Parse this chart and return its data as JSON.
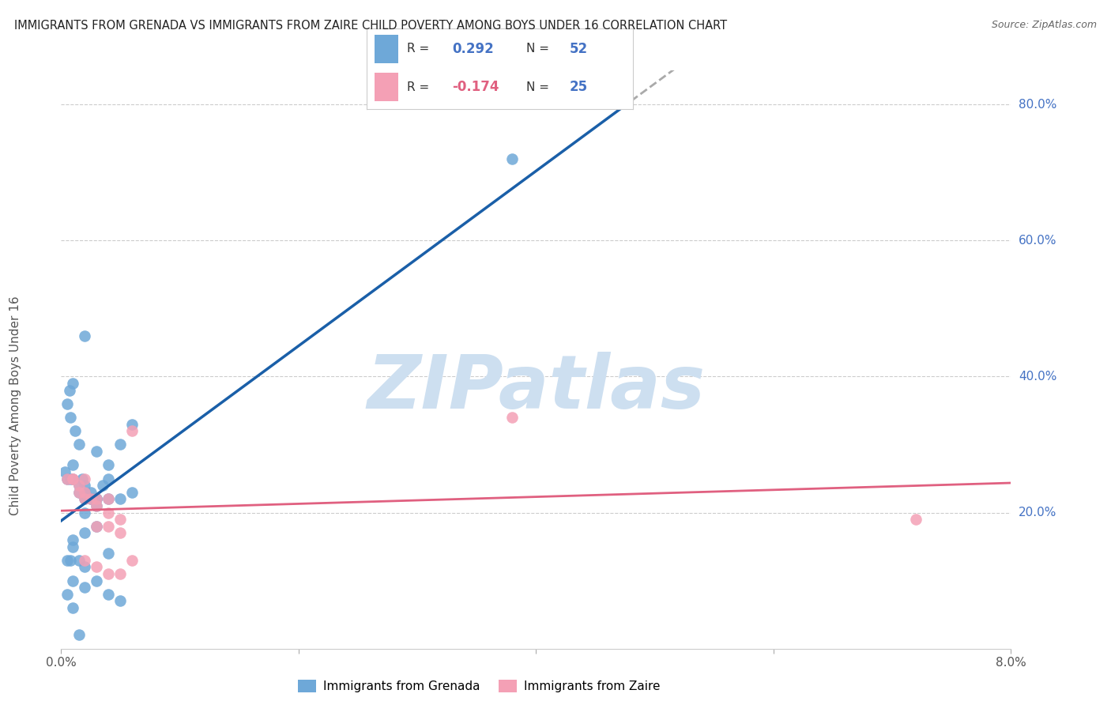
{
  "title": "IMMIGRANTS FROM GRENADA VS IMMIGRANTS FROM ZAIRE CHILD POVERTY AMONG BOYS UNDER 16 CORRELATION CHART",
  "source": "Source: ZipAtlas.com",
  "ylabel": "Child Poverty Among Boys Under 16",
  "xlabel_grenada": "Immigrants from Grenada",
  "xlabel_zaire": "Immigrants from Zaire",
  "x_min": 0.0,
  "x_max": 0.08,
  "y_min": 0.0,
  "y_max": 0.85,
  "right_yticks": [
    0.2,
    0.4,
    0.6,
    0.8
  ],
  "right_ytick_labels": [
    "20.0%",
    "40.0%",
    "60.0%",
    "80.0%"
  ],
  "grenada_R": 0.292,
  "grenada_N": 52,
  "zaire_R": -0.174,
  "zaire_N": 25,
  "grenada_color": "#6ea8d8",
  "zaire_color": "#f4a0b5",
  "grenada_line_color": "#1a5fa8",
  "zaire_line_color": "#e06080",
  "dashed_line_color": "#aaaaaa",
  "watermark": "ZIPatlas",
  "watermark_color": "#cddff0",
  "background_color": "#ffffff",
  "title_fontsize": 11,
  "source_fontsize": 9,
  "grenada_x": [
    0.0003,
    0.0007,
    0.0005,
    0.001,
    0.0008,
    0.0012,
    0.0015,
    0.001,
    0.0018,
    0.002,
    0.0015,
    0.0025,
    0.002,
    0.003,
    0.0035,
    0.004,
    0.005,
    0.006,
    0.001,
    0.0005,
    0.0008,
    0.0015,
    0.002,
    0.0025,
    0.001,
    0.0005,
    0.0008,
    0.0015,
    0.002,
    0.0025,
    0.003,
    0.004,
    0.005,
    0.006,
    0.003,
    0.002,
    0.001,
    0.0005,
    0.001,
    0.002,
    0.003,
    0.004,
    0.005,
    0.038,
    0.001,
    0.002,
    0.003,
    0.004,
    0.003,
    0.002,
    0.004,
    0.0015
  ],
  "grenada_y": [
    0.26,
    0.38,
    0.36,
    0.39,
    0.34,
    0.32,
    0.3,
    0.27,
    0.25,
    0.24,
    0.23,
    0.22,
    0.22,
    0.21,
    0.24,
    0.27,
    0.3,
    0.33,
    0.15,
    0.13,
    0.13,
    0.13,
    0.12,
    0.23,
    0.25,
    0.25,
    0.25,
    0.24,
    0.23,
    0.22,
    0.22,
    0.22,
    0.22,
    0.23,
    0.29,
    0.2,
    0.1,
    0.08,
    0.06,
    0.09,
    0.1,
    0.08,
    0.07,
    0.72,
    0.16,
    0.17,
    0.22,
    0.14,
    0.18,
    0.46,
    0.25,
    0.02
  ],
  "zaire_x": [
    0.001,
    0.0005,
    0.0015,
    0.002,
    0.0025,
    0.003,
    0.004,
    0.002,
    0.001,
    0.0015,
    0.002,
    0.003,
    0.004,
    0.005,
    0.006,
    0.003,
    0.002,
    0.003,
    0.004,
    0.005,
    0.006,
    0.038,
    0.004,
    0.005,
    0.072
  ],
  "zaire_y": [
    0.25,
    0.25,
    0.24,
    0.23,
    0.22,
    0.22,
    0.22,
    0.25,
    0.25,
    0.23,
    0.22,
    0.21,
    0.18,
    0.17,
    0.13,
    0.18,
    0.13,
    0.12,
    0.11,
    0.11,
    0.32,
    0.34,
    0.2,
    0.19,
    0.19
  ]
}
